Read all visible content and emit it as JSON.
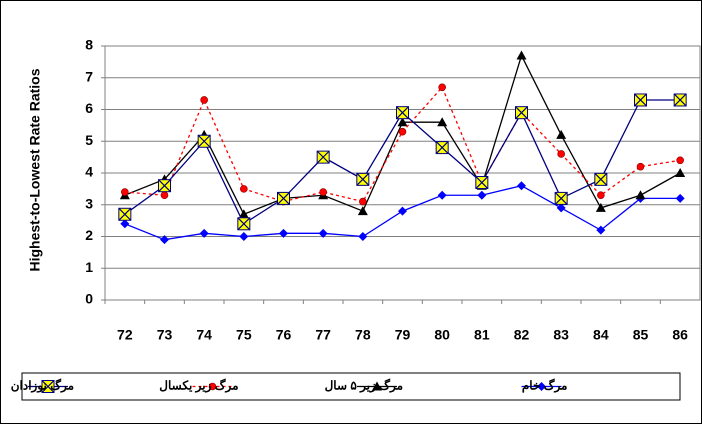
{
  "chart_data": {
    "type": "line",
    "y_label": "Highest-to-Lowest Rate Ratios",
    "categories": [
      "72",
      "73",
      "74",
      "75",
      "76",
      "77",
      "78",
      "79",
      "80",
      "81",
      "82",
      "83",
      "84",
      "85",
      "86"
    ],
    "series": [
      {
        "name": "مرگ نوزادان",
        "color": "#000080",
        "marker": "square-x",
        "dash": "solid",
        "values": [
          2.7,
          3.6,
          5.0,
          2.4,
          3.2,
          4.5,
          3.8,
          5.9,
          4.8,
          3.7,
          5.9,
          3.2,
          3.8,
          6.3,
          6.3
        ]
      },
      {
        "name": "مرگ زیر یکسال",
        "color": "#ff0000",
        "marker": "circle",
        "dash": "dotted",
        "values": [
          3.4,
          3.3,
          6.3,
          3.5,
          3.1,
          3.4,
          3.1,
          5.3,
          6.7,
          3.7,
          5.9,
          4.6,
          3.3,
          4.2,
          4.4
        ]
      },
      {
        "name": "مرگ زیر ۵ سال",
        "color": "#000000",
        "marker": "triangle",
        "dash": "solid",
        "values": [
          3.3,
          3.8,
          5.2,
          2.7,
          3.2,
          3.3,
          2.8,
          5.6,
          5.6,
          3.6,
          7.7,
          5.2,
          2.9,
          3.3,
          4.0
        ]
      },
      {
        "name": "مرگ خام",
        "color": "#0000ff",
        "marker": "diamond",
        "dash": "solid",
        "values": [
          2.4,
          1.9,
          2.1,
          2.0,
          2.1,
          2.1,
          2.0,
          2.8,
          3.3,
          3.3,
          3.6,
          2.9,
          2.2,
          3.2,
          3.2
        ]
      }
    ],
    "ylim": [
      0,
      8
    ],
    "yticks": [
      0,
      1,
      2,
      3,
      4,
      5,
      6,
      7,
      8
    ],
    "grid": true,
    "legend": "bottom"
  }
}
